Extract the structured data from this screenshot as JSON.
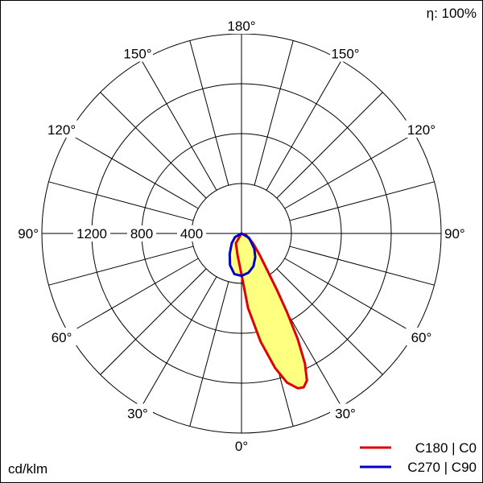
{
  "chart_data": {
    "type": "polar",
    "efficiency_label": "η: 100%",
    "unit_label": "cd/klm",
    "radial_ticks": [
      400,
      800,
      1200
    ],
    "r_max": 1600,
    "radial_tick_labels": [
      "400",
      "800",
      "1200"
    ],
    "angle_labels": [
      {
        "text": "180°",
        "angle": 180,
        "side": "center"
      },
      {
        "text": "150°",
        "angle": 150,
        "side": "left"
      },
      {
        "text": "150°",
        "angle": 150,
        "side": "right"
      },
      {
        "text": "120°",
        "angle": 120,
        "side": "left"
      },
      {
        "text": "120°",
        "angle": 120,
        "side": "right"
      },
      {
        "text": "90°",
        "angle": 90,
        "side": "left"
      },
      {
        "text": "90°",
        "angle": 90,
        "side": "right"
      },
      {
        "text": "60°",
        "angle": 60,
        "side": "left"
      },
      {
        "text": "60°",
        "angle": 60,
        "side": "right"
      },
      {
        "text": "30°",
        "angle": 30,
        "side": "left"
      },
      {
        "text": "30°",
        "angle": 30,
        "side": "right"
      },
      {
        "text": "0°",
        "angle": 0,
        "side": "center"
      }
    ],
    "series": [
      {
        "name": "C180 | C0",
        "color": "#e00000",
        "fill": "#ffff80",
        "points": [
          {
            "angle": -30,
            "r": 90
          },
          {
            "angle": -10,
            "r": 180
          },
          {
            "angle": 0,
            "r": 330
          },
          {
            "angle": 5,
            "r": 600
          },
          {
            "angle": 10,
            "r": 880
          },
          {
            "angle": 14,
            "r": 1110
          },
          {
            "angle": 17,
            "r": 1250
          },
          {
            "angle": 20,
            "r": 1320
          },
          {
            "angle": 22,
            "r": 1330
          },
          {
            "angle": 24,
            "r": 1290
          },
          {
            "angle": 26,
            "r": 1160
          },
          {
            "angle": 28,
            "r": 960
          },
          {
            "angle": 30,
            "r": 730
          },
          {
            "angle": 32,
            "r": 540
          },
          {
            "angle": 35,
            "r": 360
          },
          {
            "angle": 40,
            "r": 230
          },
          {
            "angle": 50,
            "r": 120
          },
          {
            "angle": 70,
            "r": 40
          },
          {
            "angle": 90,
            "r": 0
          }
        ]
      },
      {
        "name": "C270 | C90",
        "color": "#0000cc",
        "fill": "#ffff80",
        "points": [
          {
            "angle": -90,
            "r": 0
          },
          {
            "angle": -60,
            "r": 60
          },
          {
            "angle": -45,
            "r": 110
          },
          {
            "angle": -30,
            "r": 190
          },
          {
            "angle": -20,
            "r": 270
          },
          {
            "angle": -10,
            "r": 330
          },
          {
            "angle": 0,
            "r": 340
          },
          {
            "angle": 10,
            "r": 320
          },
          {
            "angle": 20,
            "r": 280
          },
          {
            "angle": 30,
            "r": 220
          },
          {
            "angle": 40,
            "r": 160
          },
          {
            "angle": 60,
            "r": 70
          },
          {
            "angle": 90,
            "r": 0
          }
        ]
      }
    ],
    "legend_position": "bottom-right"
  }
}
